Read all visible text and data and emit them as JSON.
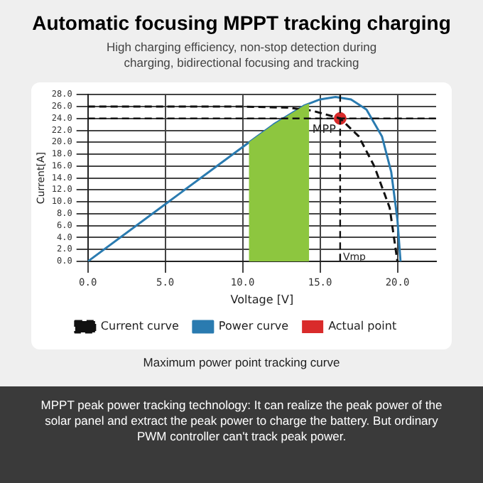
{
  "chart_data": {
    "type": "line",
    "title": "Automatic focusing MPPT tracking charging",
    "subtitle": "High charging efficiency, non-stop detection during charging, bidirectional focusing and tracking",
    "xlabel": "Voltage [V]",
    "ylabel": "Current[A]",
    "xlim": [
      0,
      22.5
    ],
    "xticks": [
      {
        "value": 0,
        "label": "0.0"
      },
      {
        "value": 5,
        "label": "5.0"
      },
      {
        "value": 10,
        "label": "10.0"
      },
      {
        "value": 15,
        "label": "15.0"
      },
      {
        "value": 20,
        "label": "20.0"
      }
    ],
    "ylim": [
      0,
      28
    ],
    "yticks": [
      {
        "value": 0,
        "label": "0.0"
      },
      {
        "value": 2,
        "label": "2.0"
      },
      {
        "value": 4,
        "label": "4.0"
      },
      {
        "value": 6,
        "label": "6.0"
      },
      {
        "value": 8,
        "label": "8.0"
      },
      {
        "value": 10,
        "label": "10.0"
      },
      {
        "value": 12,
        "label": "12.0"
      },
      {
        "value": 14,
        "label": "14.0"
      },
      {
        "value": 16,
        "label": "16.0"
      },
      {
        "value": 18,
        "label": "18.0"
      },
      {
        "value": 20,
        "label": "20.0"
      },
      {
        "value": 22,
        "label": "22.0"
      },
      {
        "value": 24,
        "label": "24.0"
      },
      {
        "value": 26,
        "label": "26.0"
      },
      {
        "value": 28,
        "label": "28.0"
      }
    ],
    "grid": true,
    "legend": "bottom",
    "series": [
      {
        "type": "area",
        "color": "#8dc63f",
        "x": [
          10.4,
          12,
          14,
          14.3
        ],
        "values": [
          20,
          23,
          26.2,
          26.5
        ]
      },
      {
        "name": "Current curve",
        "type": "line",
        "line_style": "dashed",
        "color": "#111111",
        "x": [
          0,
          10,
          13,
          14.5,
          16.3,
          17.5,
          18.5,
          19.5,
          20
        ],
        "values": [
          26,
          26,
          25.8,
          25.3,
          24,
          21,
          16,
          9,
          0
        ]
      },
      {
        "name": "Power curve",
        "type": "line",
        "line_style": "solid",
        "color": "#2a7bb0",
        "x": [
          0,
          5,
          10,
          12,
          14,
          15,
          16,
          17,
          18,
          19,
          19.6,
          20,
          20.2
        ],
        "values": [
          0,
          9.6,
          19.2,
          23,
          26.2,
          27.2,
          27.6,
          27.2,
          25.5,
          21,
          15,
          7,
          0
        ]
      },
      {
        "name": "Actual point",
        "type": "scatter",
        "color": "#d92b2b",
        "x": [
          16.3
        ],
        "values": [
          24
        ]
      }
    ],
    "ref_lines": [
      {
        "axis": "y",
        "value": 24,
        "color": "#111111",
        "line_style": "dashed"
      },
      {
        "axis": "x",
        "value": 16.3,
        "label": "Vmp",
        "color": "#111111",
        "line_style": "dashed"
      }
    ],
    "annotations": [
      {
        "text": "MPP",
        "x": 16.3,
        "y": 24
      },
      "Maximum power point tracking curve",
      "MPPT peak power tracking technology: It can realize the peak power of the solar panel and extract the peak power to charge the battery. But ordinary PWM controller can't track peak power."
    ]
  }
}
